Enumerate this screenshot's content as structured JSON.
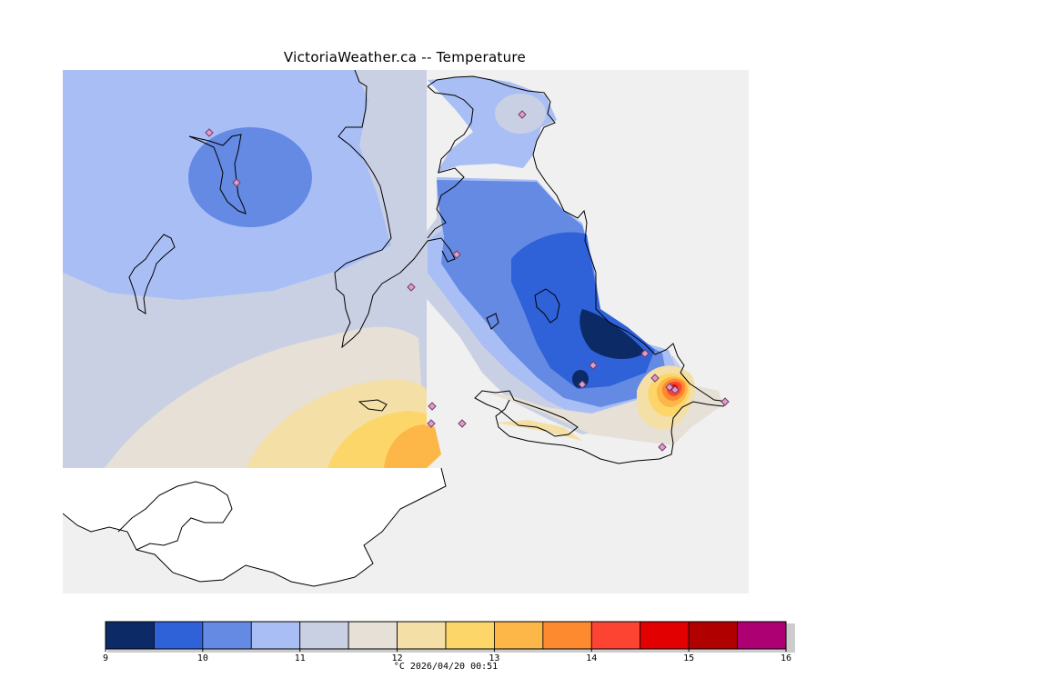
{
  "title": "VictoriaWeather.ca -- Temperature",
  "footer": "°C  2026/04/20 00:51",
  "legend": {
    "ticks": [
      "9",
      "10",
      "11",
      "12",
      "13",
      "14",
      "15",
      "16"
    ],
    "bins": [
      {
        "from": 9.0,
        "to": 9.5,
        "color": "#0c2a66"
      },
      {
        "from": 9.5,
        "to": 10.0,
        "color": "#2f62d9"
      },
      {
        "from": 10.0,
        "to": 10.5,
        "color": "#658ae3"
      },
      {
        "from": 10.5,
        "to": 11.0,
        "color": "#a9bef5"
      },
      {
        "from": 11.0,
        "to": 11.5,
        "color": "#cad0e3"
      },
      {
        "from": 11.5,
        "to": 12.0,
        "color": "#e6e0d6"
      },
      {
        "from": 12.0,
        "to": 12.5,
        "color": "#f4dfa7"
      },
      {
        "from": 12.5,
        "to": 13.0,
        "color": "#fdd66a"
      },
      {
        "from": 13.0,
        "to": 13.5,
        "color": "#fdb648"
      },
      {
        "from": 13.5,
        "to": 14.0,
        "color": "#fd8a2e"
      },
      {
        "from": 14.0,
        "to": 14.5,
        "color": "#fd4433"
      },
      {
        "from": 14.5,
        "to": 15.0,
        "color": "#e30000"
      },
      {
        "from": 15.0,
        "to": 15.5,
        "color": "#b00000"
      },
      {
        "from": 15.5,
        "to": 16.0,
        "color": "#ac0073"
      }
    ]
  },
  "map": {
    "background_color": "#f0f0f0",
    "land_outline_color": "#000000",
    "station_marker": "diamond",
    "station_color": "#d9a0c8"
  }
}
